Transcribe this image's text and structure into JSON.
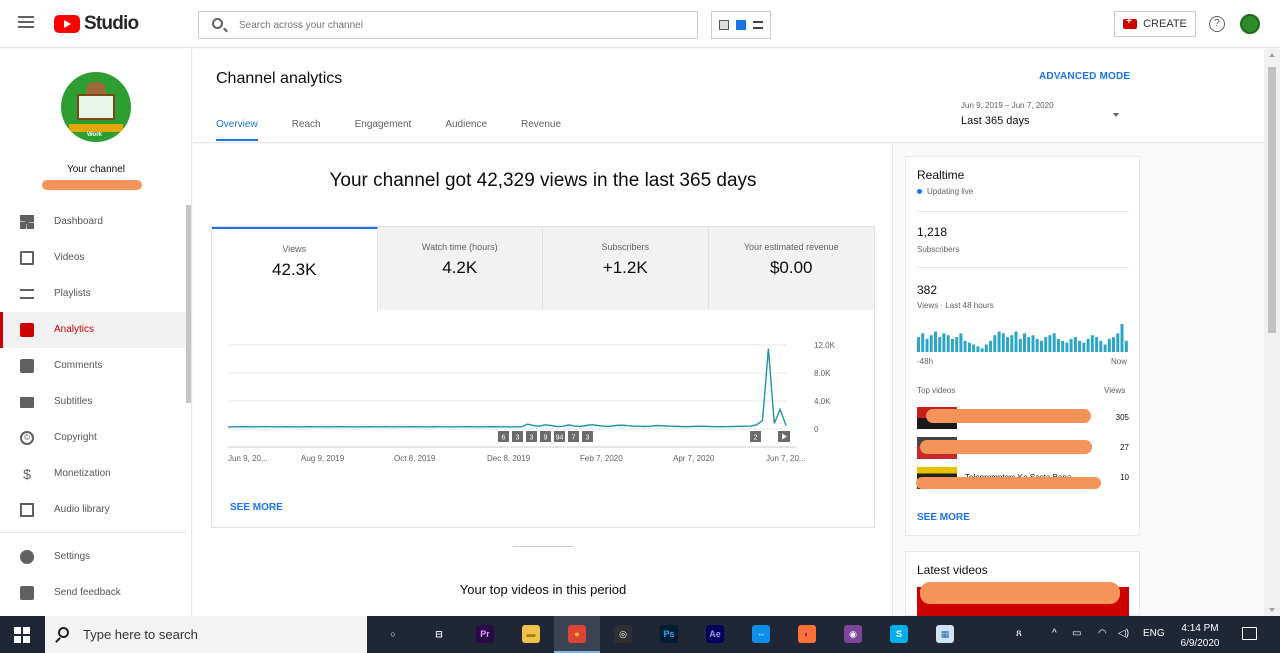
{
  "app": {
    "logo_text": "Studio",
    "search_placeholder": "Search across your channel",
    "create_label": "CREATE",
    "help_glyph": "?"
  },
  "sidebar": {
    "channel_label": "Your channel",
    "items": [
      {
        "label": "Dashboard",
        "icon": "dashboard-icon"
      },
      {
        "label": "Videos",
        "icon": "videos-icon"
      },
      {
        "label": "Playlists",
        "icon": "playlists-icon"
      },
      {
        "label": "Analytics",
        "icon": "analytics-icon",
        "active": true
      },
      {
        "label": "Comments",
        "icon": "comments-icon"
      },
      {
        "label": "Subtitles",
        "icon": "subtitles-icon"
      },
      {
        "label": "Copyright",
        "icon": "copyright-icon"
      },
      {
        "label": "Monetization",
        "icon": "monetization-icon"
      },
      {
        "label": "Audio library",
        "icon": "audio-library-icon"
      }
    ],
    "bottom_items": [
      {
        "label": "Settings",
        "icon": "gear-icon"
      },
      {
        "label": "Send feedback",
        "icon": "feedback-icon"
      }
    ],
    "copyright_glyph": "©",
    "dollar_glyph": "$"
  },
  "header": {
    "title": "Channel analytics",
    "advanced_mode": "ADVANCED MODE",
    "tabs": [
      "Overview",
      "Reach",
      "Engagement",
      "Audience",
      "Revenue"
    ],
    "active_tab": "Overview",
    "date_range": "Jun 9, 2019 – Jun 7, 2020",
    "date_label": "Last 365 days"
  },
  "overview": {
    "headline": "Your channel got 42,329 views in the last 365 days",
    "metrics": [
      {
        "label": "Views",
        "value": "42.3K"
      },
      {
        "label": "Watch time (hours)",
        "value": "4.2K"
      },
      {
        "label": "Subscribers",
        "value": "+1.2K"
      },
      {
        "label": "Your estimated revenue",
        "value": "$0.00"
      }
    ],
    "see_more": "SEE MORE",
    "top_videos_title": "Your top videos in this period"
  },
  "chart_data": {
    "type": "line",
    "series": [
      {
        "values": [
          300,
          320,
          310,
          330,
          300,
          320,
          340,
          330,
          310,
          320,
          330,
          310,
          300,
          320,
          330,
          310,
          320,
          300,
          310,
          330,
          320,
          310,
          300,
          320,
          330,
          310,
          320,
          330,
          300,
          310,
          320,
          330,
          310,
          320,
          300,
          330,
          310,
          320,
          300,
          310,
          320,
          330,
          310,
          300,
          320,
          330,
          310,
          320,
          300,
          310,
          320,
          700,
          500,
          400,
          600,
          500,
          350,
          380,
          600,
          420,
          380,
          500,
          620,
          480,
          400,
          380,
          500,
          550,
          480,
          400,
          380,
          350,
          420,
          500,
          460,
          420,
          380,
          350,
          330,
          360,
          400,
          380,
          350,
          330,
          320,
          340,
          360,
          380,
          400,
          420,
          600,
          1200,
          11500,
          800,
          2800,
          500
        ]
      }
    ],
    "x_ticks": [
      "Jun 9, 20...",
      "Aug 9, 2019",
      "Oct 8, 2019",
      "Dec 8, 2019",
      "Feb 7, 2020",
      "Apr 7, 2020",
      "Jun 7, 20..."
    ],
    "y_ticks": [
      "12.0K",
      "8.0K",
      "4.0K",
      "0"
    ],
    "ylim": [
      0,
      12000
    ],
    "event_markers": [
      "6",
      "3",
      "3",
      "9",
      "94",
      "7",
      "3"
    ],
    "end_markers": [
      "2"
    ],
    "grid": true
  },
  "realtime": {
    "title": "Realtime",
    "status": "Updating live",
    "subscribers": "1,218",
    "subscribers_label": "Subscribers",
    "views": "382",
    "views_label": "Views · Last 48 hours",
    "bars": [
      8,
      10,
      7,
      9,
      11,
      8,
      10,
      9,
      7,
      8,
      10,
      6,
      5,
      4,
      3,
      2,
      4,
      6,
      9,
      11,
      10,
      8,
      9,
      11,
      7,
      10,
      8,
      9,
      7,
      6,
      8,
      9,
      10,
      7,
      6,
      5,
      7,
      8,
      6,
      5,
      7,
      9,
      8,
      6,
      4,
      7,
      8,
      10,
      15,
      6
    ],
    "axis_start": "-48h",
    "axis_end": "Now",
    "top_videos_label": "Top videos",
    "views_header": "Views",
    "top_videos": [
      {
        "title": "",
        "views": "305"
      },
      {
        "title": "",
        "views": "27"
      },
      {
        "title": "Teleprompters Ko Sasta Bana",
        "views": "10"
      }
    ],
    "see_more": "SEE MORE"
  },
  "latest": {
    "title": "Latest videos"
  },
  "taskbar": {
    "search_text": "Type here to search",
    "apps": [
      {
        "icon": "task-view-icon",
        "glyph": "○",
        "bg": "transparent",
        "fg": "#ffffff"
      },
      {
        "icon": "timeline-icon",
        "glyph": "⊟",
        "bg": "transparent",
        "fg": "#ffffff"
      },
      {
        "icon": "premiere-icon",
        "glyph": "Pr",
        "bg": "#2a0a45",
        "fg": "#e19cff"
      },
      {
        "icon": "file-explorer-icon",
        "glyph": "▬",
        "bg": "#f0c14b",
        "fg": "#a77b12"
      },
      {
        "icon": "chrome-icon",
        "glyph": "●",
        "bg": "#db4437",
        "fg": "#f4c20d",
        "active": true
      },
      {
        "icon": "obs-icon",
        "glyph": "◎",
        "bg": "#302e31",
        "fg": "#ffffff"
      },
      {
        "icon": "photoshop-icon",
        "glyph": "Ps",
        "bg": "#001d34",
        "fg": "#31a8ff"
      },
      {
        "icon": "after-effects-icon",
        "glyph": "Ae",
        "bg": "#00005b",
        "fg": "#9999ff"
      },
      {
        "icon": "teamviewer-icon",
        "glyph": "⇔",
        "bg": "#0e8ee9",
        "fg": "#ffffff"
      },
      {
        "icon": "firefox-icon",
        "glyph": "◐",
        "bg": "#ff7139",
        "fg": "#6a1bb2"
      },
      {
        "icon": "tor-icon",
        "glyph": "◉",
        "bg": "#7d4698",
        "fg": "#ffffff"
      },
      {
        "icon": "skype-icon",
        "glyph": "S",
        "bg": "#00aff0",
        "fg": "#ffffff"
      },
      {
        "icon": "paint-icon",
        "glyph": "▦",
        "bg": "#cfe3f5",
        "fg": "#2b6cb0"
      }
    ],
    "language": "ENG",
    "time": "4:14 PM",
    "date": "6/9/2020"
  }
}
